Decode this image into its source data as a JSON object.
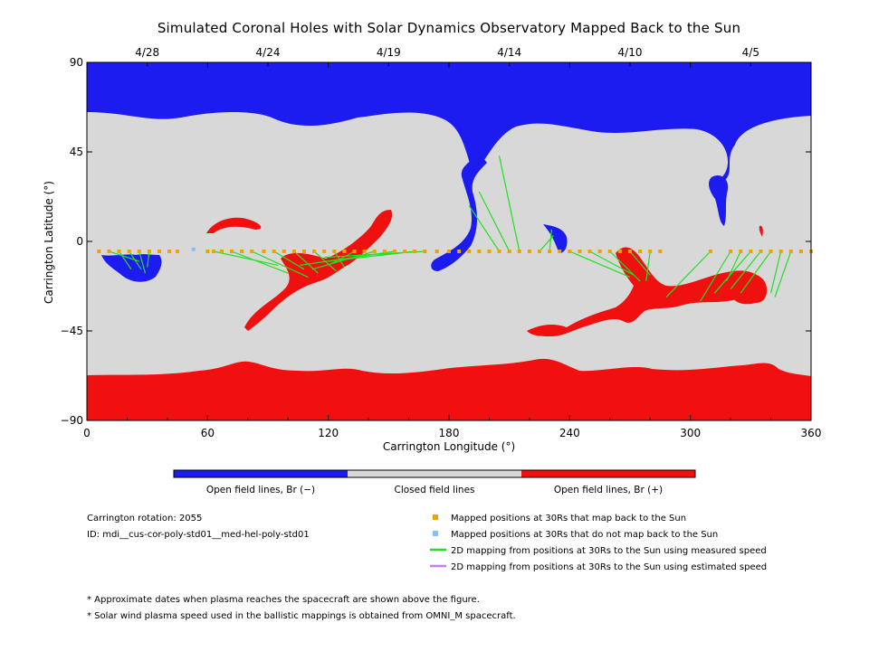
{
  "chart_data": {
    "type": "scatter",
    "title": "Simulated Coronal Holes with Solar Dynamics Observatory Mapped Back to the Sun",
    "xlabel": "Carrington Longitude (°)",
    "ylabel": "Carrington Latitude (°)",
    "xlim": [
      0,
      360
    ],
    "ylim": [
      -90,
      90
    ],
    "xticks": [
      0,
      60,
      120,
      180,
      240,
      300,
      360
    ],
    "yticks": [
      90,
      45,
      0,
      -45,
      -90
    ],
    "top_axis": {
      "note": "dates",
      "ticks": [
        {
          "x": 30,
          "label": "4/28"
        },
        {
          "x": 90,
          "label": "4/24"
        },
        {
          "x": 150,
          "label": "4/19"
        },
        {
          "x": 210,
          "label": "4/14"
        },
        {
          "x": 270,
          "label": "4/10"
        },
        {
          "x": 330,
          "label": "4/5"
        }
      ]
    },
    "colors": {
      "open_negative": "#1c1cf0",
      "closed": "#d8d8d8",
      "open_positive": "#f01010",
      "mapped_back": "#f0a000",
      "not_mapped": "#80c0ff",
      "measured_line": "#20e020",
      "estimated_line": "#c080f0"
    },
    "regions": {
      "north_polar_hole": {
        "polarity": "negative",
        "boundary_lat": [
          67,
          62,
          60,
          47,
          61,
          66,
          63
        ]
      },
      "south_polar_hole": {
        "polarity": "positive",
        "boundary_lat": [
          -66,
          -64,
          -58,
          -68,
          -58,
          -64,
          -68
        ]
      },
      "positive_patches": [
        {
          "lon": [
            62,
            90
          ],
          "lat": [
            6,
            12
          ]
        },
        {
          "lon": [
            80,
            150
          ],
          "lat": [
            -44,
            17
          ]
        },
        {
          "lon": [
            220,
            335
          ],
          "lat": [
            -48,
            -4
          ]
        },
        {
          "lon": [
            320,
            340
          ],
          "lat": [
            -30,
            -18
          ]
        },
        {
          "lon": [
            335,
            337
          ],
          "lat": [
            2,
            9
          ]
        }
      ],
      "negative_patches": [
        {
          "lon": [
            10,
            38
          ],
          "lat": [
            -20,
            -6
          ]
        },
        {
          "lon": [
            170,
            210
          ],
          "lat": [
            -15,
            50
          ]
        },
        {
          "lon": [
            228,
            236
          ],
          "lat": [
            -6,
            8
          ]
        },
        {
          "lon": [
            305,
            320
          ],
          "lat": [
            8,
            35
          ]
        }
      ]
    },
    "mapped_positions": {
      "mapped_back": {
        "lon": [
          6,
          11,
          16,
          21,
          26,
          31,
          36,
          41,
          45,
          60,
          63,
          67,
          72,
          77,
          82,
          88,
          93,
          98,
          103,
          108,
          113,
          118,
          123,
          128,
          133,
          138,
          143,
          148,
          153,
          158,
          163,
          168,
          174,
          180,
          185,
          190,
          195,
          200,
          205,
          210,
          215,
          220,
          225,
          230,
          235,
          240,
          245,
          250,
          255,
          260,
          265,
          270,
          275,
          280,
          285,
          310,
          320,
          325,
          330,
          335,
          340,
          345,
          350,
          355,
          360
        ],
        "lat": [
          -5,
          -5,
          -5,
          -5,
          -5,
          -5,
          -5,
          -5,
          -5,
          -5,
          -5,
          -5,
          -5,
          -5,
          -5,
          -5,
          -5,
          -5,
          -5,
          -5,
          -5,
          -5,
          -5,
          -5,
          -5,
          -5,
          -5,
          -5,
          -5,
          -5,
          -5,
          -5,
          -5,
          -5,
          -5,
          -5,
          -5,
          -5,
          -5,
          -5,
          -5,
          -5,
          -5,
          -5,
          -5,
          -5,
          -5,
          -5,
          -5,
          -5,
          -5,
          -5,
          -5,
          -5,
          -5,
          -5,
          -5,
          -5,
          -5,
          -5,
          -5,
          -5,
          -5,
          -5,
          -5
        ]
      },
      "not_mapped": {
        "lon": [
          53
        ],
        "lat": [
          -4
        ]
      }
    },
    "mappings_2d_measured": [
      [
        [
          11,
          -5
        ],
        [
          26,
          -10
        ]
      ],
      [
        [
          16,
          -5
        ],
        [
          22,
          -14
        ]
      ],
      [
        [
          21,
          -5
        ],
        [
          27,
          -14
        ]
      ],
      [
        [
          26,
          -5
        ],
        [
          29,
          -16
        ]
      ],
      [
        [
          31,
          -5
        ],
        [
          30,
          -13
        ]
      ],
      [
        [
          63,
          -5
        ],
        [
          95,
          -12
        ]
      ],
      [
        [
          72,
          -5
        ],
        [
          100,
          -16
        ]
      ],
      [
        [
          82,
          -5
        ],
        [
          110,
          -18
        ]
      ],
      [
        [
          93,
          -5
        ],
        [
          108,
          -14
        ]
      ],
      [
        [
          103,
          -5
        ],
        [
          115,
          -16
        ]
      ],
      [
        [
          113,
          -5
        ],
        [
          124,
          -15
        ]
      ],
      [
        [
          123,
          -5
        ],
        [
          128,
          -13
        ]
      ],
      [
        [
          133,
          -5
        ],
        [
          120,
          -12
        ]
      ],
      [
        [
          143,
          -5
        ],
        [
          112,
          -14
        ]
      ],
      [
        [
          153,
          -5
        ],
        [
          106,
          -12
        ]
      ],
      [
        [
          163,
          -5
        ],
        [
          120,
          -10
        ]
      ],
      [
        [
          168,
          -5
        ],
        [
          118,
          -8
        ]
      ],
      [
        [
          205,
          -5
        ],
        [
          190,
          18
        ]
      ],
      [
        [
          210,
          -5
        ],
        [
          195,
          25
        ]
      ],
      [
        [
          215,
          -5
        ],
        [
          205,
          43
        ]
      ],
      [
        [
          225,
          -5
        ],
        [
          232,
          3
        ]
      ],
      [
        [
          230,
          -5
        ],
        [
          231,
          6
        ]
      ],
      [
        [
          240,
          -5
        ],
        [
          270,
          -18
        ]
      ],
      [
        [
          250,
          -5
        ],
        [
          272,
          -17
        ]
      ],
      [
        [
          260,
          -5
        ],
        [
          275,
          -20
        ]
      ],
      [
        [
          270,
          -5
        ],
        [
          280,
          -17
        ]
      ],
      [
        [
          280,
          -5
        ],
        [
          278,
          -20
        ]
      ],
      [
        [
          310,
          -5
        ],
        [
          288,
          -28
        ]
      ],
      [
        [
          320,
          -5
        ],
        [
          305,
          -30
        ]
      ],
      [
        [
          325,
          -5
        ],
        [
          318,
          -20
        ]
      ],
      [
        [
          330,
          -5
        ],
        [
          312,
          -26
        ]
      ],
      [
        [
          335,
          -5
        ],
        [
          320,
          -24
        ]
      ],
      [
        [
          340,
          -5
        ],
        [
          325,
          -26
        ]
      ],
      [
        [
          345,
          -5
        ],
        [
          340,
          -26
        ]
      ],
      [
        [
          350,
          -5
        ],
        [
          342,
          -28
        ]
      ]
    ],
    "mappings_2d_estimated": []
  },
  "colorbar": {
    "labels": [
      "Open field lines, Br (−)",
      "Closed field lines",
      "Open field lines, Br (+)"
    ]
  },
  "info": {
    "rotation": "Carrington rotation: 2055",
    "id": "ID: mdi__cus-cor-poly-std01__med-hel-poly-std01"
  },
  "legend": {
    "mapped_back": "Mapped positions at 30Rs that map back to the Sun",
    "not_mapped": "Mapped positions at 30Rs that do not map back to the Sun",
    "measured": "2D mapping from positions at 30Rs to the Sun using measured speed",
    "estimated": "2D mapping from positions at 30Rs to the Sun using estimated speed"
  },
  "footnotes": [
    "* Approximate dates when plasma reaches the spacecraft are shown above the figure.",
    "* Solar wind plasma speed used in the ballistic mappings is obtained from OMNI_M spacecraft."
  ]
}
